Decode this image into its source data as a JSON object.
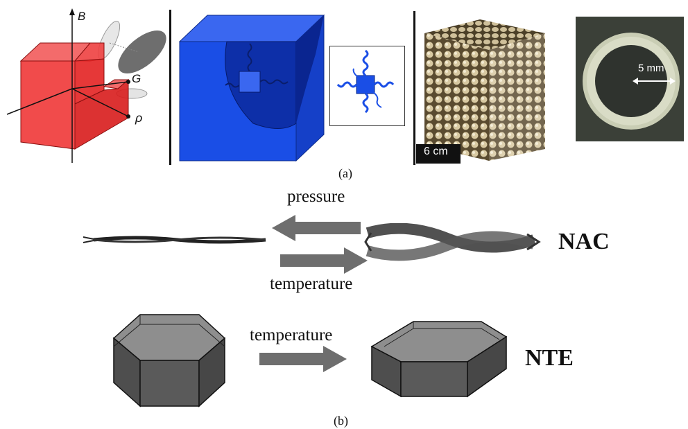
{
  "panel_a": {
    "caption": "(a)",
    "axis_labels": {
      "b": "B",
      "g": "G",
      "rho": "ρ"
    },
    "scale_bar_label": "6 cm",
    "ring_scale_label": "5 mm"
  },
  "panel_b": {
    "caption": "(b)",
    "nac": {
      "label": "NAC",
      "top_arrow_label": "pressure",
      "bottom_arrow_label": "temperature"
    },
    "nte": {
      "label": "NTE",
      "arrow_label": "temperature"
    }
  },
  "colors": {
    "red_cube": "#ee2b2b",
    "blue_cube": "#1a4ee6",
    "arrow_gray": "#6e6e6e",
    "shape_gray": "#555555"
  }
}
